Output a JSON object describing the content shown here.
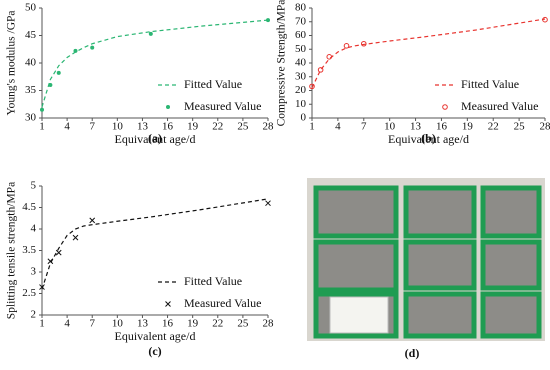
{
  "chart_data": [
    {
      "type": "line",
      "panel": "(a)",
      "xlabel": "Equivalent age/d",
      "ylabel": "Young's modulus /GPa",
      "xlim": [
        1,
        28
      ],
      "xticks": [
        1,
        4,
        7,
        10,
        13,
        16,
        19,
        22,
        25,
        28
      ],
      "ylim": [
        30,
        50
      ],
      "yticks": [
        30,
        35,
        40,
        45,
        50
      ],
      "grid": false,
      "legend": "lower right",
      "series": [
        {
          "name": "Fitted Value",
          "color": "#2bb673",
          "style": "dashed",
          "x": [
            1,
            2,
            3,
            4,
            5,
            6,
            7,
            10,
            14,
            20,
            28
          ],
          "values": [
            32,
            37,
            39.5,
            41,
            42,
            42.8,
            43.5,
            44.8,
            45.7,
            46.7,
            47.8
          ]
        },
        {
          "name": "Measured Value",
          "color": "#2bb673",
          "style": "dot",
          "x": [
            1,
            2,
            3,
            5,
            7,
            14,
            28
          ],
          "values": [
            31.5,
            36,
            38.2,
            42.2,
            42.8,
            45.3,
            47.8
          ]
        }
      ]
    },
    {
      "type": "line",
      "panel": "(b)",
      "xlabel": "Equivalent age/d",
      "ylabel": "Compressive Strength/MPa",
      "xlim": [
        1,
        28
      ],
      "xticks": [
        1,
        4,
        7,
        10,
        13,
        16,
        19,
        22,
        25,
        28
      ],
      "ylim": [
        0,
        80
      ],
      "yticks": [
        0,
        10,
        20,
        30,
        40,
        50,
        60,
        70,
        80
      ],
      "grid": false,
      "legend": "lower right",
      "series": [
        {
          "name": "Fitted Value",
          "color": "#e8332e",
          "style": "dashed",
          "x": [
            1,
            2,
            3,
            4,
            5,
            6,
            7,
            10,
            14,
            20,
            28
          ],
          "values": [
            22,
            35,
            43,
            48,
            51,
            52.5,
            53.5,
            56,
            59,
            64,
            72
          ]
        },
        {
          "name": "Measured Value",
          "color": "#e8332e",
          "style": "circle",
          "x": [
            1,
            2,
            3,
            5,
            7,
            28
          ],
          "values": [
            23,
            35,
            44.5,
            52.5,
            54,
            71.5
          ]
        }
      ]
    },
    {
      "type": "line",
      "panel": "(c)",
      "xlabel": "Equivalent age/d",
      "ylabel": "Splitting tensile strength/MPa",
      "xlim": [
        1,
        28
      ],
      "xticks": [
        1,
        4,
        7,
        10,
        13,
        16,
        19,
        22,
        25,
        28
      ],
      "ylim": [
        2,
        5
      ],
      "yticks": [
        2,
        2.5,
        3,
        3.5,
        4,
        4.5,
        5
      ],
      "grid": false,
      "legend": "lower right",
      "series": [
        {
          "name": "Fitted Value",
          "color": "#111111",
          "style": "dashed",
          "x": [
            1,
            2,
            3,
            4,
            5,
            6,
            7,
            10,
            14,
            20,
            28
          ],
          "values": [
            2.6,
            3.2,
            3.55,
            3.85,
            4.0,
            4.07,
            4.1,
            4.18,
            4.28,
            4.45,
            4.7
          ]
        },
        {
          "name": "Measured Value",
          "color": "#111111",
          "style": "x",
          "x": [
            1,
            2,
            3,
            5,
            7,
            28
          ],
          "values": [
            2.65,
            3.25,
            3.45,
            3.8,
            4.2,
            4.6
          ]
        }
      ]
    }
  ],
  "photo": {
    "caption": "(d)"
  }
}
